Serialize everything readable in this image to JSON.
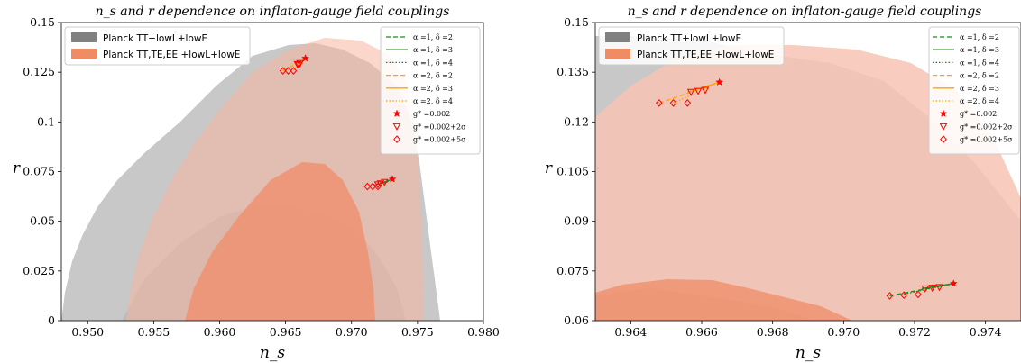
{
  "chart_data": [
    {
      "type": "line",
      "title": "n_s and r dependence on inflaton-gauge field couplings",
      "xlabel": "n_s",
      "ylabel": "r",
      "xlim": [
        0.948,
        0.98
      ],
      "ylim": [
        0,
        0.15
      ],
      "xticks": [
        "0.950",
        "0.955",
        "0.960",
        "0.965",
        "0.970",
        "0.975",
        "0.980"
      ],
      "xtick_values": [
        0.95,
        0.955,
        0.96,
        0.965,
        0.97,
        0.975,
        0.98
      ],
      "yticks": [
        "0",
        "0.025",
        "0.05",
        "0.075",
        "0.1",
        "0.125",
        "0.15"
      ],
      "ytick_values": [
        0,
        0.025,
        0.05,
        0.075,
        0.1,
        0.125,
        0.15
      ],
      "grid": false,
      "region_legend_placement": "top-left",
      "series_legend_placement": "top-right",
      "regions": [
        {
          "name": "Planck TT+lowL+lowE",
          "color": "#808080"
        },
        {
          "name": "Planck TT,TE,EE +lowL+lowE",
          "color": "#f08c64"
        }
      ],
      "series": [
        {
          "name": "α =1, δ =2",
          "color": "#1a8a1a",
          "style": "dashed",
          "x": [
            0.972,
            0.9731
          ],
          "y": [
            0.0675,
            0.0712
          ]
        },
        {
          "name": "α =1, δ =3",
          "color": "#1a8a1a",
          "style": "solid",
          "x": [
            0.9722,
            0.9731
          ],
          "y": [
            0.069,
            0.0712
          ]
        },
        {
          "name": "α =1, δ =4",
          "color": "#1a8a1a",
          "style": "dotted",
          "x": [
            0.9717,
            0.9731
          ],
          "y": [
            0.068,
            0.0712
          ]
        },
        {
          "name": "α =2, δ =2",
          "color": "#ffa500",
          "style": "dashed",
          "x": [
            0.9648,
            0.9665
          ],
          "y": [
            0.1257,
            0.132
          ]
        },
        {
          "name": "α =2, δ =3",
          "color": "#ffa500",
          "style": "solid",
          "x": [
            0.966,
            0.9665
          ],
          "y": [
            0.129,
            0.132
          ]
        },
        {
          "name": "α =2, δ =4",
          "color": "#ffa500",
          "style": "dotted",
          "x": [
            0.9656,
            0.9665
          ],
          "y": [
            0.126,
            0.132
          ]
        }
      ],
      "markers": [
        {
          "name": "g* =0.002",
          "symbol": "star",
          "color": "#ff0000",
          "x": [
            0.9665,
            0.9731
          ],
          "y": [
            0.132,
            0.0712
          ]
        },
        {
          "name": "g* =0.002+2σ",
          "symbol": "triangle-down",
          "color": "#ff0000",
          "x": [
            0.9659,
            0.9661,
            0.966,
            0.9725,
            0.9722,
            0.972
          ],
          "y": [
            0.129,
            0.1295,
            0.1287,
            0.0697,
            0.069,
            0.0685
          ]
        },
        {
          "name": "g* =0.002+5σ",
          "symbol": "diamond",
          "color": "#ff0000",
          "x": [
            0.9648,
            0.9652,
            0.9656,
            0.9712,
            0.9716,
            0.972
          ],
          "y": [
            0.1257,
            0.1257,
            0.1257,
            0.0675,
            0.0675,
            0.0675
          ]
        }
      ]
    },
    {
      "type": "line",
      "title": "n_s and r dependence on inflaton-gauge field couplings",
      "xlabel": "n_s",
      "ylabel": "r",
      "xlim": [
        0.963,
        0.975
      ],
      "ylim": [
        0.06,
        0.15
      ],
      "xticks": [
        "0.964",
        "0.966",
        "0.968",
        "0.970",
        "0.972",
        "0.974"
      ],
      "xtick_values": [
        0.964,
        0.966,
        0.968,
        0.97,
        0.972,
        0.974
      ],
      "yticks": [
        "0.06",
        "0.075",
        "0.09",
        "0.105",
        "0.12",
        "0.135",
        "0.15"
      ],
      "ytick_values": [
        0.06,
        0.075,
        0.09,
        0.105,
        0.12,
        0.135,
        0.15
      ],
      "grid": false,
      "region_legend_placement": "top-left",
      "series_legend_placement": "top-right",
      "regions": [
        {
          "name": "Planck TT+lowL+lowE",
          "color": "#808080"
        },
        {
          "name": "Planck TT,TE,EE +lowL+lowE",
          "color": "#f08c64"
        }
      ],
      "series": [
        {
          "name": "α =1, δ =2",
          "color": "#1a8a1a",
          "style": "dashed",
          "x": [
            0.9713,
            0.9731
          ],
          "y": [
            0.0675,
            0.0712
          ]
        },
        {
          "name": "α =1, δ =3",
          "color": "#1a8a1a",
          "style": "solid",
          "x": [
            0.9722,
            0.9731
          ],
          "y": [
            0.0697,
            0.0712
          ]
        },
        {
          "name": "α =1, δ =4",
          "color": "#1a8a1a",
          "style": "dotted",
          "x": [
            0.9717,
            0.9731
          ],
          "y": [
            0.068,
            0.0712
          ]
        },
        {
          "name": "α =2, δ =2",
          "color": "#ffa500",
          "style": "dashed",
          "x": [
            0.9648,
            0.9665
          ],
          "y": [
            0.1257,
            0.132
          ]
        },
        {
          "name": "α =2, δ =3",
          "color": "#ffa500",
          "style": "solid",
          "x": [
            0.9656,
            0.9665
          ],
          "y": [
            0.129,
            0.132
          ]
        },
        {
          "name": "α =2, δ =4",
          "color": "#ffa500",
          "style": "dotted",
          "x": [
            0.9652,
            0.9665
          ],
          "y": [
            0.1257,
            0.132
          ]
        }
      ],
      "markers": [
        {
          "name": "g* =0.002",
          "symbol": "star",
          "color": "#ff0000",
          "x": [
            0.9665,
            0.9731
          ],
          "y": [
            0.132,
            0.0712
          ]
        },
        {
          "name": "g* =0.002+2σ",
          "symbol": "triangle-down",
          "color": "#ff0000",
          "x": [
            0.9657,
            0.9659,
            0.9661,
            0.9723,
            0.9725,
            0.9727
          ],
          "y": [
            0.129,
            0.1293,
            0.1296,
            0.0697,
            0.0699,
            0.0701
          ]
        },
        {
          "name": "g* =0.002+5σ",
          "symbol": "diamond",
          "color": "#ff0000",
          "x": [
            0.9648,
            0.9652,
            0.9656,
            0.9713,
            0.9717,
            0.9721
          ],
          "y": [
            0.1257,
            0.1257,
            0.1257,
            0.0675,
            0.0677,
            0.0679
          ]
        }
      ]
    }
  ]
}
